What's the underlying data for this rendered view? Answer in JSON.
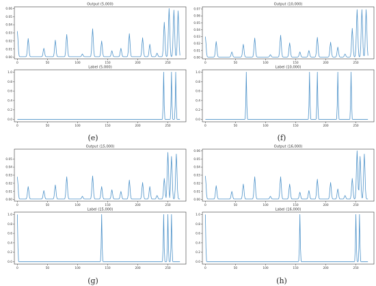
{
  "panel_letters": [
    "(e)",
    "(f)",
    "(g)",
    "(h)"
  ],
  "chart_data": [
    {
      "type": "line",
      "panel": "e",
      "title": "Output (5,000)",
      "xlim": [
        -5,
        280
      ],
      "ylim": [
        -0.002,
        0.062
      ],
      "xticks": [
        0,
        50,
        100,
        150,
        200,
        250
      ],
      "yticks": [
        0.0,
        0.01,
        0.02,
        0.03,
        0.04,
        0.05,
        0.06
      ],
      "ytick_labels": [
        "0.00",
        "0.01",
        "0.02",
        "0.03",
        "0.04",
        "0.05",
        "0.06"
      ],
      "peaks": [
        [
          0,
          0.032
        ],
        [
          18,
          0.023
        ],
        [
          44,
          0.011
        ],
        [
          63,
          0.021
        ],
        [
          82,
          0.028
        ],
        [
          108,
          0.004
        ],
        [
          125,
          0.035
        ],
        [
          140,
          0.02
        ],
        [
          157,
          0.008
        ],
        [
          172,
          0.011
        ],
        [
          186,
          0.029
        ],
        [
          208,
          0.024
        ],
        [
          220,
          0.016
        ],
        [
          232,
          0.005
        ],
        [
          244,
          0.043
        ],
        [
          252,
          0.06
        ],
        [
          260,
          0.058
        ],
        [
          267,
          0.057
        ]
      ]
    },
    {
      "type": "line",
      "panel": "f",
      "title": "Output (10,000)",
      "xlim": [
        -5,
        280
      ],
      "ylim": [
        -0.002,
        0.073
      ],
      "xticks": [
        0,
        50,
        100,
        150,
        200,
        250
      ],
      "yticks": [
        0.0,
        0.01,
        0.02,
        0.03,
        0.04,
        0.05,
        0.06,
        0.07
      ],
      "ytick_labels": [
        "0.00",
        "0.01",
        "0.02",
        "0.03",
        "0.04",
        "0.05",
        "0.06",
        "0.07"
      ],
      "peaks": [
        [
          0,
          0.03
        ],
        [
          18,
          0.023
        ],
        [
          44,
          0.008
        ],
        [
          63,
          0.019
        ],
        [
          82,
          0.028
        ],
        [
          108,
          0.004
        ],
        [
          125,
          0.032
        ],
        [
          140,
          0.021
        ],
        [
          157,
          0.008
        ],
        [
          172,
          0.01
        ],
        [
          186,
          0.029
        ],
        [
          208,
          0.022
        ],
        [
          220,
          0.015
        ],
        [
          232,
          0.005
        ],
        [
          244,
          0.042
        ],
        [
          252,
          0.069
        ],
        [
          260,
          0.069
        ],
        [
          267,
          0.069
        ]
      ]
    },
    {
      "type": "line",
      "panel": "e",
      "title": "Label (5,000)",
      "xlim": [
        -5,
        280
      ],
      "ylim": [
        -0.05,
        1.05
      ],
      "xticks": [
        0,
        50,
        100,
        150,
        200,
        250
      ],
      "yticks": [
        0.0,
        0.2,
        0.4,
        0.6,
        0.8,
        1.0
      ],
      "ytick_labels": [
        "0.0",
        "0.2",
        "0.4",
        "0.6",
        "0.8",
        "1.0"
      ],
      "peaks": [
        [
          243,
          1.0
        ],
        [
          256,
          1.0
        ],
        [
          263,
          1.0
        ]
      ]
    },
    {
      "type": "line",
      "panel": "f",
      "title": "Label (10,000)",
      "xlim": [
        -5,
        280
      ],
      "ylim": [
        -0.05,
        1.05
      ],
      "xticks": [
        0,
        50,
        100,
        150,
        200,
        250
      ],
      "yticks": [
        0.0,
        0.2,
        0.4,
        0.6,
        0.8,
        1.0
      ],
      "ytick_labels": [
        "0.0",
        "0.2",
        "0.4",
        "0.6",
        "0.8",
        "1.0"
      ],
      "peaks": [
        [
          68,
          1.0
        ],
        [
          173,
          1.0
        ],
        [
          186,
          1.0
        ],
        [
          220,
          1.0
        ],
        [
          242,
          1.0
        ]
      ]
    },
    {
      "type": "line",
      "panel": "g",
      "title": "Output (15,000)",
      "xlim": [
        -5,
        280
      ],
      "ylim": [
        -0.002,
        0.062
      ],
      "xticks": [
        0,
        50,
        100,
        150,
        200,
        250
      ],
      "yticks": [
        0.0,
        0.01,
        0.02,
        0.03,
        0.04,
        0.05
      ],
      "ytick_labels": [
        "0.00",
        "0.01",
        "0.02",
        "0.03",
        "0.04",
        "0.05"
      ],
      "peaks": [
        [
          0,
          0.028
        ],
        [
          18,
          0.016
        ],
        [
          44,
          0.011
        ],
        [
          63,
          0.018
        ],
        [
          82,
          0.028
        ],
        [
          108,
          0.004
        ],
        [
          125,
          0.029
        ],
        [
          140,
          0.016
        ],
        [
          157,
          0.012
        ],
        [
          172,
          0.01
        ],
        [
          186,
          0.024
        ],
        [
          208,
          0.021
        ],
        [
          220,
          0.016
        ],
        [
          232,
          0.005
        ],
        [
          244,
          0.026
        ],
        [
          250,
          0.058
        ],
        [
          256,
          0.053
        ],
        [
          264,
          0.056
        ]
      ]
    },
    {
      "type": "line",
      "panel": "h",
      "title": "Output (16,000)",
      "xlim": [
        -5,
        280
      ],
      "ylim": [
        -0.002,
        0.062
      ],
      "xticks": [
        0,
        50,
        100,
        150,
        200,
        250
      ],
      "yticks": [
        0.0,
        0.01,
        0.02,
        0.03,
        0.04,
        0.05,
        0.06
      ],
      "ytick_labels": [
        "0.00",
        "0.01",
        "0.02",
        "0.03",
        "0.04",
        "0.05",
        "0.06"
      ],
      "peaks": [
        [
          0,
          0.029
        ],
        [
          18,
          0.017
        ],
        [
          44,
          0.01
        ],
        [
          63,
          0.019
        ],
        [
          82,
          0.028
        ],
        [
          108,
          0.004
        ],
        [
          125,
          0.028
        ],
        [
          140,
          0.019
        ],
        [
          157,
          0.009
        ],
        [
          172,
          0.011
        ],
        [
          186,
          0.025
        ],
        [
          208,
          0.021
        ],
        [
          220,
          0.013
        ],
        [
          232,
          0.005
        ],
        [
          244,
          0.026
        ],
        [
          252,
          0.06
        ],
        [
          257,
          0.053
        ],
        [
          264,
          0.056
        ]
      ]
    },
    {
      "type": "line",
      "panel": "g",
      "title": "Label (15,000)",
      "xlim": [
        -5,
        280
      ],
      "ylim": [
        -0.05,
        1.05
      ],
      "xticks": [
        0,
        50,
        100,
        150,
        200,
        250
      ],
      "yticks": [
        0.0,
        0.2,
        0.4,
        0.6,
        0.8,
        1.0
      ],
      "ytick_labels": [
        "0.0",
        "0.2",
        "0.4",
        "0.6",
        "0.8",
        "1.0"
      ],
      "peaks": [
        [
          0,
          1.0
        ],
        [
          140,
          1.0
        ],
        [
          243,
          1.0
        ],
        [
          250,
          1.0
        ],
        [
          256,
          1.0
        ]
      ]
    },
    {
      "type": "line",
      "panel": "h",
      "title": "Label (16,000)",
      "xlim": [
        -5,
        280
      ],
      "ylim": [
        -0.05,
        1.05
      ],
      "xticks": [
        0,
        50,
        100,
        150,
        200,
        250
      ],
      "yticks": [
        0.0,
        0.2,
        0.4,
        0.6,
        0.8,
        1.0
      ],
      "ytick_labels": [
        "0.0",
        "0.2",
        "0.4",
        "0.6",
        "0.8",
        "1.0"
      ],
      "peaks": [
        [
          0,
          1.0
        ],
        [
          157,
          1.0
        ],
        [
          250,
          1.0
        ],
        [
          256,
          1.0
        ]
      ]
    }
  ],
  "colors": {
    "line": "#4a90c8",
    "axis": "#333333",
    "text": "#333333"
  }
}
